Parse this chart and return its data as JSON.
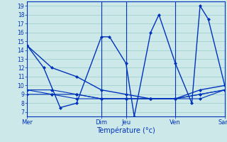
{
  "background_color": "#cce8e8",
  "grid_color": "#99cccc",
  "line_color": "#0033bb",
  "xlabel": "Température (°c)",
  "xlim": [
    0,
    24
  ],
  "ylim": [
    6.5,
    19.5
  ],
  "yticks": [
    7,
    8,
    9,
    10,
    11,
    12,
    13,
    14,
    15,
    16,
    17,
    18,
    19
  ],
  "xtick_positions": [
    0,
    9,
    12,
    18,
    24
  ],
  "xtick_labels": [
    "Mer",
    "Dim",
    "Jeu",
    "Ven",
    "Sam"
  ],
  "vline_positions": [
    9,
    12,
    18
  ],
  "series": [
    {
      "x": [
        0,
        2,
        4,
        6,
        9,
        10,
        12,
        13,
        15,
        16,
        18,
        20,
        21,
        22,
        24
      ],
      "y": [
        14.5,
        12.0,
        7.5,
        8.0,
        15.5,
        15.5,
        12.5,
        6.5,
        16.0,
        18.0,
        12.5,
        8.0,
        19.0,
        17.5,
        10.0
      ],
      "lw": 1.0
    },
    {
      "x": [
        0,
        3,
        6,
        9,
        12,
        15,
        18,
        21,
        24
      ],
      "y": [
        14.5,
        12.0,
        11.0,
        9.5,
        9.0,
        8.5,
        8.5,
        9.5,
        10.0
      ],
      "lw": 1.0
    },
    {
      "x": [
        0,
        3,
        6,
        9,
        12,
        15,
        18,
        21,
        24
      ],
      "y": [
        9.5,
        9.5,
        9.0,
        8.5,
        8.5,
        8.5,
        8.5,
        9.0,
        9.5
      ],
      "lw": 0.8
    },
    {
      "x": [
        0,
        3,
        6,
        9,
        12,
        15,
        18,
        21,
        24
      ],
      "y": [
        9.5,
        9.0,
        9.0,
        8.5,
        8.5,
        8.5,
        8.5,
        8.5,
        9.5
      ],
      "lw": 0.8
    },
    {
      "x": [
        0,
        3,
        6,
        9,
        12,
        15,
        18,
        21,
        24
      ],
      "y": [
        9.0,
        9.0,
        8.5,
        8.5,
        8.5,
        8.5,
        8.5,
        9.0,
        9.5
      ],
      "lw": 0.8
    }
  ]
}
